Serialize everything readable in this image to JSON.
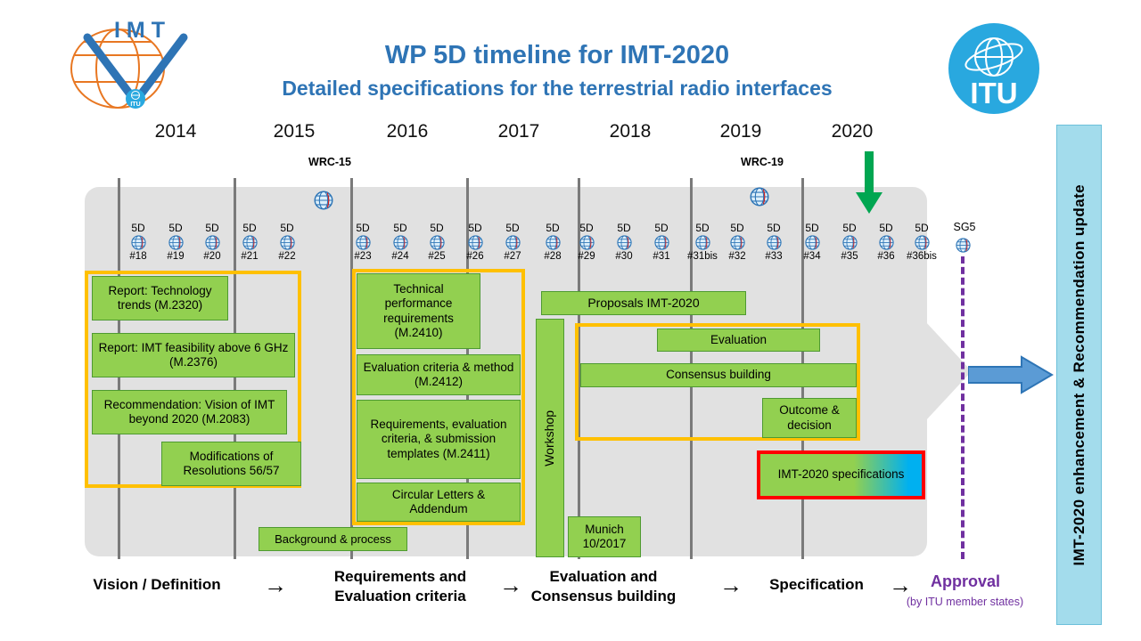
{
  "header": {
    "title": "WP 5D timeline for IMT-2020",
    "subtitle": "Detailed specifications for the terrestrial radio interfaces"
  },
  "logos": {
    "imt": "IMT",
    "itu": "ITU"
  },
  "years": [
    "2014",
    "2015",
    "2016",
    "2017",
    "2018",
    "2019",
    "2020"
  ],
  "wrc": {
    "wrc15": "WRC-15",
    "wrc19": "WRC-19"
  },
  "meetings": {
    "prefix": "5D",
    "numbers": [
      "#18",
      "#19",
      "#20",
      "#21",
      "#22",
      "#23",
      "#24",
      "#25",
      "#26",
      "#27",
      "#28",
      "#29",
      "#30",
      "#31",
      "#31bis",
      "#32",
      "#33",
      "#34",
      "#35",
      "#36",
      "#36bis"
    ],
    "sg5": "SG5"
  },
  "timeline_boxes": {
    "vision_group": [
      "Report: Technology trends (M.2320)",
      "Report: IMT feasibility above 6 GHz (M.2376)",
      "Recommendation: Vision of IMT beyond 2020 (M.2083)",
      "Modifications of Resolutions 56/57"
    ],
    "requirements_group": [
      "Technical performance requirements (M.2410)",
      "Evaluation criteria & method (M.2412)",
      "Requirements, evaluation criteria, & submission templates (M.2411)",
      "Circular Letters & Addendum"
    ],
    "proposals": "Proposals IMT-2020",
    "evaluation_group": [
      "Evaluation",
      "Consensus building",
      "Outcome & decision"
    ],
    "specifications": "IMT-2020 specifications",
    "workshop": "Workshop",
    "munich": "Munich 10/2017",
    "background_process": "Background & process"
  },
  "sidebar": {
    "label": "IMT-2020 enhancement & Recommendation update"
  },
  "phases": {
    "arrow": "→",
    "items": [
      {
        "label": "Vision / Definition"
      },
      {
        "label": "Requirements and Evaluation criteria"
      },
      {
        "label": "Evaluation and Consensus building"
      },
      {
        "label": "Specification"
      },
      {
        "label": "Approval",
        "sub": "(by ITU member states)"
      }
    ]
  },
  "colors": {
    "title_blue": "#2E74B5",
    "box_green": "#92D050",
    "group_border_orange": "#FFC000",
    "spec_border_red": "#FF0000",
    "approval_purple": "#7030A0",
    "sidebar_cyan": "#A3DCEC",
    "timeline_gray": "#E1E1E1",
    "down_arrow_green": "#00A651",
    "side_arrow_blue": "#5B9BD5"
  }
}
